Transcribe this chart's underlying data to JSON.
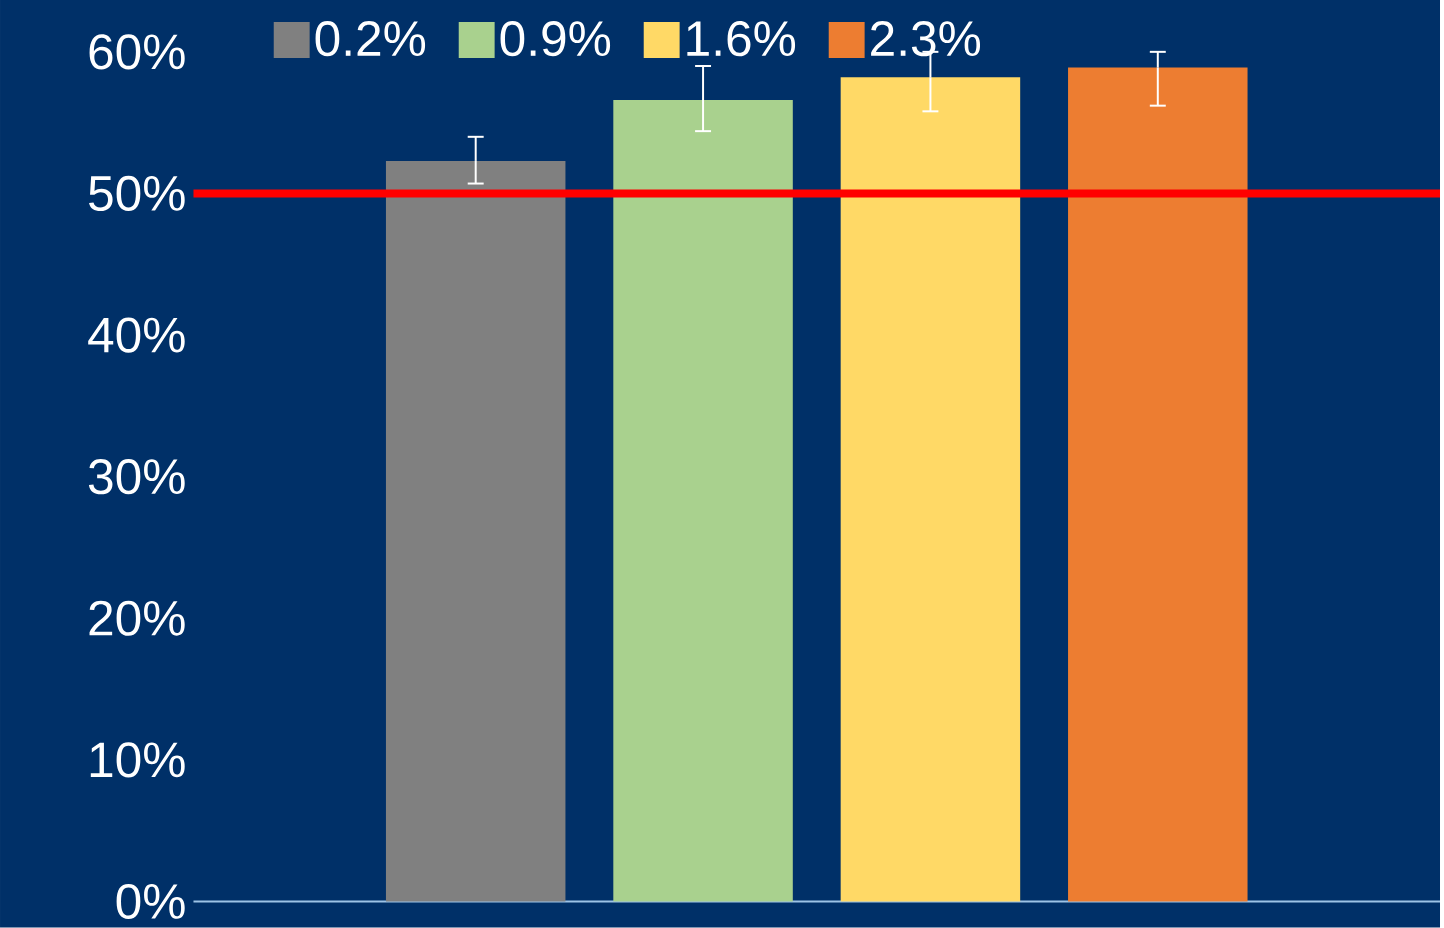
{
  "chart_data": {
    "type": "bar",
    "categories": [
      null
    ],
    "series": [
      {
        "name": "0.2%",
        "color": "#808080",
        "values": [
          52.3
        ],
        "errors": [
          [
            50.7,
            54.0
          ]
        ]
      },
      {
        "name": "0.9%",
        "color": "#a9d18e",
        "values": [
          56.6
        ],
        "errors": [
          [
            54.4,
            59.0
          ]
        ]
      },
      {
        "name": "1.6%",
        "color": "#ffd966",
        "values": [
          58.2
        ],
        "errors": [
          [
            55.8,
            60.0
          ]
        ]
      },
      {
        "name": "2.3%",
        "color": "#ed7d31",
        "values": [
          58.9
        ],
        "errors": [
          [
            56.2,
            60.0
          ]
        ]
      }
    ],
    "ylim": [
      0,
      60
    ],
    "yticks": [
      {
        "value": 0,
        "label": "0%"
      },
      {
        "value": 10,
        "label": "10%"
      },
      {
        "value": 20,
        "label": "20%"
      },
      {
        "value": 30,
        "label": "30%"
      },
      {
        "value": 40,
        "label": "40%"
      },
      {
        "value": 50,
        "label": "50%"
      },
      {
        "value": 60,
        "label": "60%"
      }
    ],
    "ref_lines": [
      {
        "axis": "y",
        "value": 50,
        "color": "#ff0000"
      }
    ],
    "legend": "top",
    "grid": false
  }
}
